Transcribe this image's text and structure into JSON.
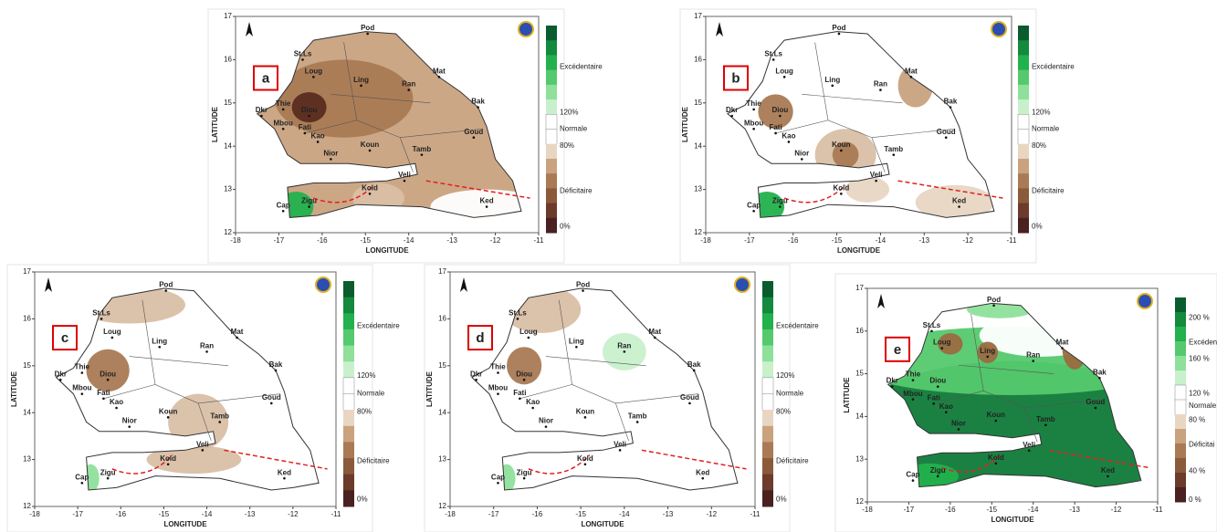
{
  "panels": [
    {
      "label": "a",
      "x_label": "LONGITUDE",
      "y_label": "LATITUDE",
      "xticks": [
        -18,
        -17,
        -16,
        -15,
        -14,
        -13,
        -12,
        -11
      ],
      "yticks": [
        12,
        13,
        14,
        15,
        16,
        17
      ],
      "legend": [
        "Excédentaire",
        "120%",
        "Normale",
        "80%",
        "Déficitaire",
        "0%"
      ]
    },
    {
      "label": "b",
      "x_label": "LONGITUDE",
      "y_label": "LATITUDE",
      "xticks": [
        -18,
        -17,
        -16,
        -15,
        -14,
        -13,
        -12,
        -11
      ],
      "yticks": [
        12,
        13,
        14,
        15,
        16,
        17
      ],
      "legend": [
        "Excédentaire",
        "120%",
        "Normale",
        "80%",
        "Déficitaire",
        "0%"
      ]
    },
    {
      "label": "c",
      "x_label": "LONGITUDE",
      "y_label": "LATITUDE",
      "xticks": [
        -18,
        -17,
        -16,
        -15,
        -14,
        -13,
        -12,
        -11
      ],
      "yticks": [
        12,
        13,
        14,
        15,
        16,
        17
      ],
      "legend": [
        "Excédentaire",
        "120%",
        "Normale",
        "80%",
        "Déficitaire",
        "0%"
      ]
    },
    {
      "label": "d",
      "x_label": "LONGITUDE",
      "y_label": "LATITUDE",
      "xticks": [
        -18,
        -17,
        -16,
        -15,
        -14,
        -13,
        -12,
        -11
      ],
      "yticks": [
        12,
        13,
        14,
        15,
        16,
        17
      ],
      "legend": [
        "Excédentaire",
        "120%",
        "Normale",
        "80%",
        "Déficitaire",
        "0%"
      ]
    },
    {
      "label": "e",
      "x_label": "LONGITUDE",
      "y_label": "LATITUDE",
      "xticks": [
        -18,
        -17,
        -16,
        -15,
        -14,
        -13,
        -12,
        -11
      ],
      "yticks": [
        12,
        13,
        14,
        15,
        16,
        17
      ],
      "legend": [
        "200 %",
        "Excédent",
        "160 %",
        "120 %",
        "Normale",
        "80 %",
        "Déficitai",
        "40 %",
        "0 %"
      ]
    }
  ],
  "place_names": [
    "Pod",
    "St.Ls",
    "Loug",
    "Ling",
    "Mat",
    "Ran",
    "Bak",
    "Dkr",
    "Thie",
    "Diou",
    "Mbou",
    "Fati",
    "Kao",
    "Nior",
    "Koun",
    "Tamb",
    "Goud",
    "Veli",
    "Kold",
    "Zigu",
    "Cap",
    "Ked"
  ]
}
